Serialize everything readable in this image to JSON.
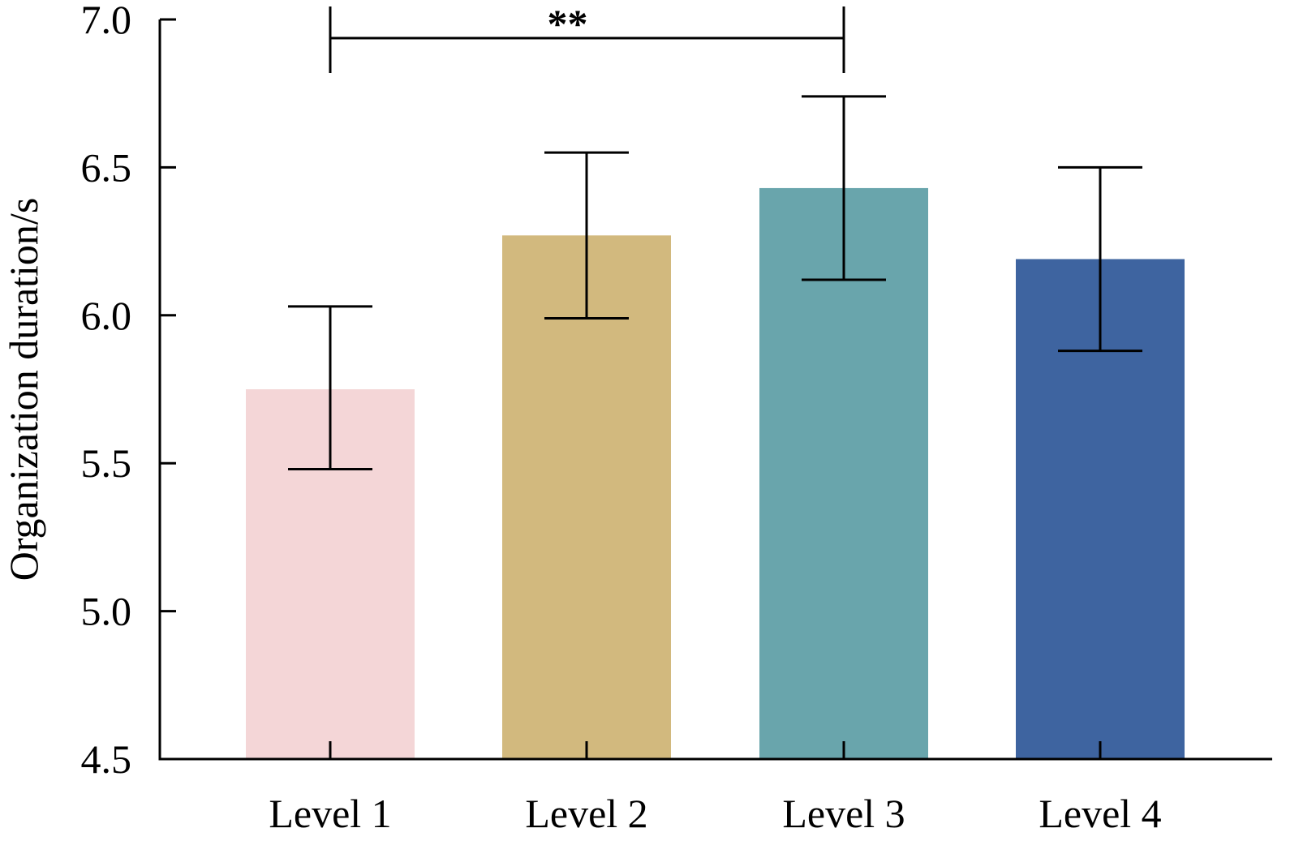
{
  "chart_data": {
    "type": "bar",
    "title": "",
    "xlabel": "",
    "ylabel": "Organization duration/s",
    "ylim": [
      4.5,
      7.0
    ],
    "yticks": [
      "4.5",
      "5.0",
      "5.5",
      "6.0",
      "6.5",
      "7.0"
    ],
    "categories": [
      "Level 1",
      "Level 2",
      "Level 3",
      "Level 4"
    ],
    "values": [
      5.75,
      6.27,
      6.43,
      6.19
    ],
    "error_low": [
      5.48,
      5.99,
      6.12,
      5.88
    ],
    "error_high": [
      6.03,
      6.55,
      6.74,
      6.5
    ],
    "colors": [
      "#f4d6d7",
      "#d2b97e",
      "#69a5ac",
      "#3e64a0"
    ],
    "grid": false,
    "annotations": [
      {
        "text": "**",
        "from": "Level 1",
        "to": "Level 3"
      }
    ]
  }
}
